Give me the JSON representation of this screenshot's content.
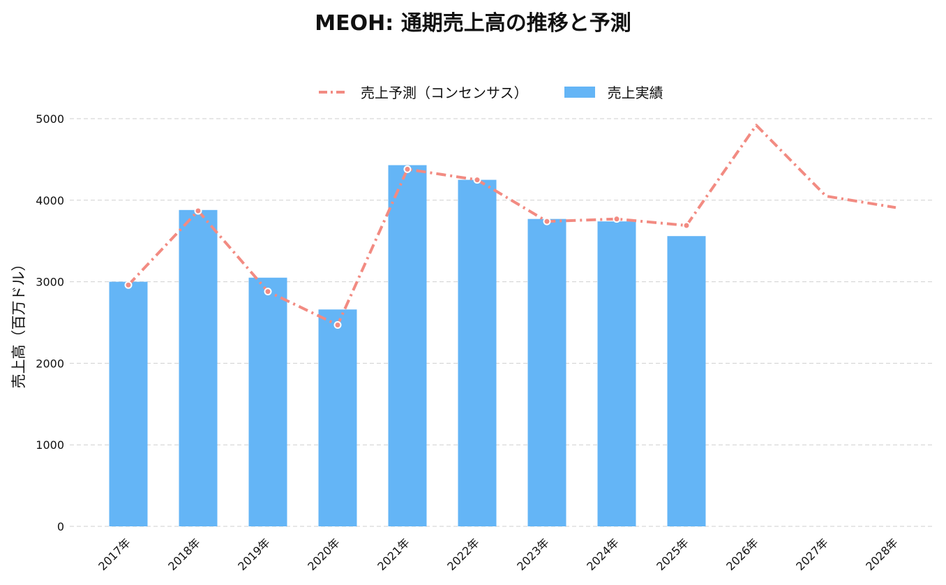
{
  "chart_data": {
    "type": "bar",
    "title": "MEOH: 通期売上高の推移と予測",
    "xlabel": "",
    "ylabel": "売上高（百万ドル）",
    "ylim": [
      0,
      5000
    ],
    "yticks": [
      0,
      1000,
      2000,
      3000,
      4000,
      5000
    ],
    "categories": [
      "2017年",
      "2018年",
      "2019年",
      "2020年",
      "2021年",
      "2022年",
      "2023年",
      "2024年",
      "2025年",
      "2026年",
      "2027年",
      "2028年"
    ],
    "grid": "y",
    "legend_position": "top-center",
    "series": [
      {
        "name": "売上予測（コンセンサス）",
        "kind": "line",
        "color": "#F28B82",
        "values": [
          2960,
          3870,
          2880,
          2470,
          4380,
          4250,
          3740,
          3770,
          3690,
          4920,
          4050,
          3910
        ]
      },
      {
        "name": "売上実績",
        "kind": "bar",
        "color": "#64B5F6",
        "values": [
          3000,
          3880,
          3050,
          2660,
          4430,
          4250,
          3770,
          3740,
          3560,
          null,
          null,
          null
        ]
      }
    ]
  }
}
